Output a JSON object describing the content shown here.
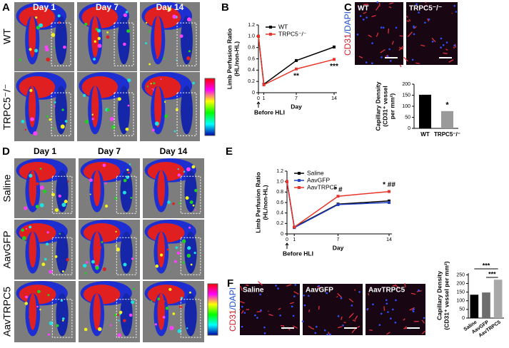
{
  "panel_labels": [
    "A",
    "B",
    "C",
    "D",
    "E",
    "F"
  ],
  "panel_a": {
    "columns": [
      "Day 1",
      "Day 7",
      "Day 14"
    ],
    "rows": [
      "WT",
      "TRPC5⁻/⁻"
    ]
  },
  "panel_c": {
    "images": [
      "WT",
      "TRPC5⁻/⁻"
    ],
    "stain": [
      "CD31",
      "/DAPI"
    ]
  },
  "panel_d": {
    "columns": [
      "Day 1",
      "Day 7",
      "Day 14"
    ],
    "rows": [
      "Saline",
      "AavGFP",
      "AavTRPC5"
    ]
  },
  "panel_f": {
    "images": [
      "Saline",
      "AavGFP",
      "AavTRPC5"
    ],
    "stain": [
      "CD31",
      "/DAPI"
    ]
  },
  "chart_data": [
    {
      "type": "line",
      "ylabel": [
        "Limb Perfusion Ratio",
        "(HL/non-HL)"
      ],
      "xlabel": "Day",
      "x_annotation": "Before HLI",
      "x": [
        0,
        1,
        7,
        14
      ],
      "xlim": [
        0,
        14
      ],
      "xticks": [
        0,
        1,
        7,
        14
      ],
      "ylim": [
        0,
        1.2
      ],
      "yticks": [
        0,
        0.2,
        0.4,
        0.6,
        0.8,
        {
          "value": 1,
          "label": "1.0"
        },
        1.2
      ],
      "legend": "upper left",
      "series": [
        {
          "name": "WT",
          "color": "#000000",
          "values": [
            1.0,
            0.15,
            0.57,
            0.81
          ]
        },
        {
          "name": "TRPC5⁻/⁻",
          "color": "#e8352b",
          "values": [
            1.0,
            0.14,
            0.42,
            0.59
          ]
        }
      ],
      "annotations": [
        {
          "text": "**",
          "x": 7
        },
        {
          "text": "***",
          "x": 14
        }
      ]
    },
    {
      "type": "bar",
      "ylabel": [
        "Capillary Density",
        "(CD31⁺ vessel",
        "per mm²)"
      ],
      "categories": [
        "WT",
        "TRPC5⁻/⁻"
      ],
      "values": [
        152,
        78
      ],
      "colors": [
        "#000000",
        "#9a9a9a"
      ],
      "ylim": [
        0,
        200
      ],
      "yticks": [
        0,
        50,
        100,
        150,
        200
      ],
      "annotations": [
        "*"
      ]
    },
    {
      "type": "line",
      "ylabel": [
        "Limb Perfusion Ratio",
        "(HL/non-HL)"
      ],
      "xlabel": "Day",
      "x_annotation": "Before HLI",
      "x": [
        0,
        1,
        7,
        14
      ],
      "xlim": [
        0,
        14
      ],
      "xticks": [
        0,
        1,
        7,
        14
      ],
      "ylim": [
        0,
        1.2
      ],
      "yticks": [
        0,
        0.2,
        0.4,
        0.6,
        0.8,
        {
          "value": 1,
          "label": "1.0"
        },
        1.2
      ],
      "legend": "upper left",
      "series": [
        {
          "name": "Saline",
          "color": "#000000",
          "values": [
            1.0,
            0.13,
            0.57,
            0.63
          ]
        },
        {
          "name": "AavGFP",
          "color": "#1f3fbf",
          "values": [
            1.0,
            0.12,
            0.56,
            0.6
          ]
        },
        {
          "name": "AavTRPC5",
          "color": "#e8352b",
          "values": [
            1.0,
            0.13,
            0.72,
            0.81
          ]
        }
      ],
      "annotations": [
        {
          "text": "* #",
          "x": 7
        },
        {
          "text": "* ##",
          "x": 14
        }
      ]
    },
    {
      "type": "bar",
      "ylabel": [
        "Capillary Density",
        "(CD31⁺ vessel per mm²)"
      ],
      "categories": [
        "Saline",
        "AavGFP",
        "AavTRPC5"
      ],
      "values": [
        135,
        148,
        222
      ],
      "colors": [
        "#000000",
        "#6e6e6e",
        "#a8a8a8"
      ],
      "ylim": [
        0,
        260
      ],
      "yticks": [
        0,
        50,
        100,
        150,
        200,
        250
      ],
      "annotations": [
        "***",
        "***"
      ]
    }
  ]
}
